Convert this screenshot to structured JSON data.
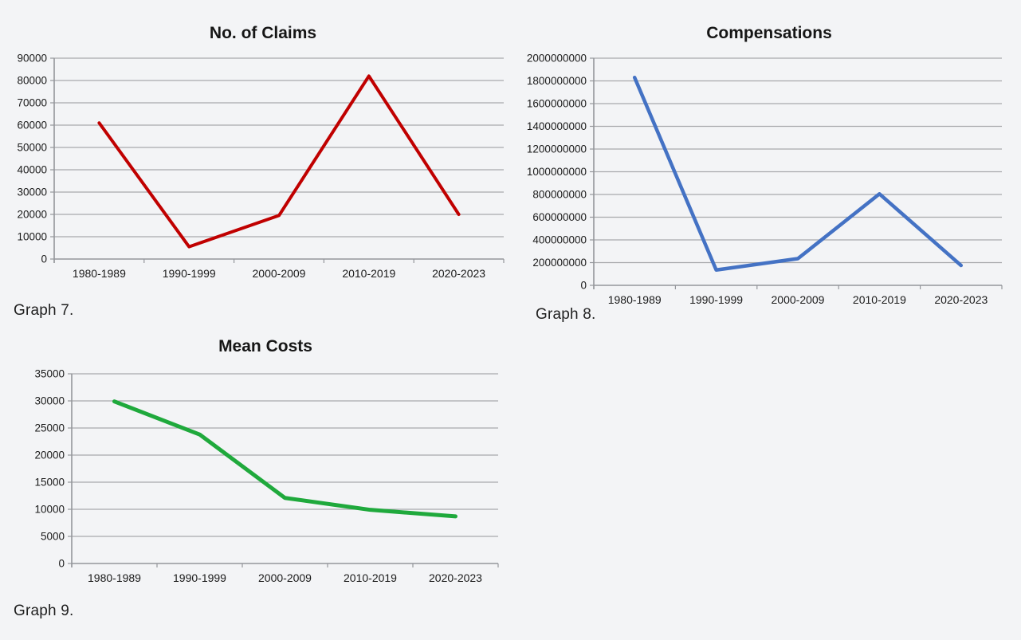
{
  "page": {
    "background": "#f3f4f6"
  },
  "styles": {
    "grid_color": "#a7a9ac",
    "axis_color": "#94969b",
    "text_color": "#1a1a1a",
    "title_color": "#161616",
    "caption_color": "#1f1f1f"
  },
  "chart_data": [
    {
      "id": "claims",
      "type": "line",
      "title": "No. of Claims",
      "caption": "Graph 7.",
      "categories": [
        "1980-1989",
        "1990-1999",
        "2000-2009",
        "2010-2019",
        "2020-2023"
      ],
      "values": [
        61000,
        5500,
        19500,
        82000,
        20000
      ],
      "ylim": [
        0,
        90000
      ],
      "ytick_step": 10000,
      "ytick_labels": [
        "0",
        "10000",
        "20000",
        "30000",
        "40000",
        "50000",
        "60000",
        "70000",
        "80000",
        "90000"
      ],
      "xlabel": "",
      "ylabel": "",
      "grid": true,
      "legend": "none",
      "line_color": "#c00000"
    },
    {
      "id": "compensations",
      "type": "line",
      "title": "Compensations",
      "caption": "Graph 8.",
      "categories": [
        "1980-1989",
        "1990-1999",
        "2000-2009",
        "2010-2019",
        "2020-2023"
      ],
      "values": [
        1830000000,
        135000000,
        235000000,
        805000000,
        175000000
      ],
      "ylim": [
        0,
        2000000000
      ],
      "ytick_step": 200000000,
      "ytick_labels": [
        "0",
        "200000000",
        "400000000",
        "600000000",
        "800000000",
        "1000000000",
        "1200000000",
        "1400000000",
        "1600000000",
        "1800000000",
        "2000000000"
      ],
      "xlabel": "",
      "ylabel": "",
      "grid": true,
      "legend": "none",
      "line_color": "#4472c4"
    },
    {
      "id": "mean-costs",
      "type": "line",
      "title": "Mean Costs",
      "caption": "Graph 9.",
      "categories": [
        "1980-1989",
        "1990-1999",
        "2000-2009",
        "2010-2019",
        "2020-2023"
      ],
      "values": [
        29900,
        23800,
        12100,
        9900,
        8700
      ],
      "ylim": [
        0,
        35000
      ],
      "ytick_step": 5000,
      "ytick_labels": [
        "0",
        "5000",
        "10000",
        "15000",
        "20000",
        "25000",
        "30000",
        "35000"
      ],
      "xlabel": "",
      "ylabel": "",
      "grid": true,
      "legend": "none",
      "line_color": "#1fa93c"
    }
  ]
}
